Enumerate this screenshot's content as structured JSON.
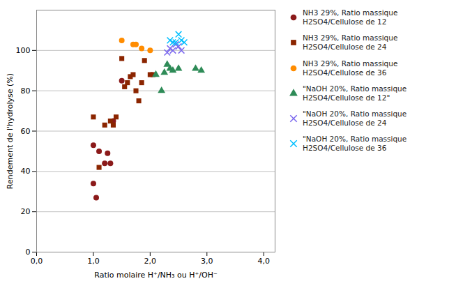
{
  "chart_data": {
    "type": "scatter",
    "xlabel": "Ratio molaire H⁺/NH₃ ou H⁺/OH⁻",
    "ylabel": "Rendement de l'hydrolyse (%)",
    "xlim": [
      0.0,
      4.2
    ],
    "ylim": [
      0,
      120
    ],
    "xticks": [
      {
        "value": 0.0,
        "label": "0,0"
      },
      {
        "value": 1.0,
        "label": "1,0"
      },
      {
        "value": 2.0,
        "label": "2,0"
      },
      {
        "value": 3.0,
        "label": "3,0"
      },
      {
        "value": 4.0,
        "label": "4,0"
      }
    ],
    "yticks": [
      0,
      20,
      40,
      60,
      80,
      100
    ],
    "grid": "y",
    "legend": "right",
    "series": [
      {
        "name": "NH3 29%, Ratio massique\nH2SO4/Cellulose de 12",
        "color": "#8B1A1A",
        "marker": "o",
        "x": [
          1.0,
          1.0,
          1.05,
          1.1,
          1.2,
          1.25,
          1.3,
          1.35,
          1.5
        ],
        "values": [
          53,
          34,
          27,
          50,
          44,
          49,
          44,
          65,
          85
        ]
      },
      {
        "name": "NH3 29%, Ratio massique\nH2SO4/Cellulose de 24",
        "color": "#8B2500",
        "marker": "s",
        "x": [
          1.0,
          1.1,
          1.2,
          1.3,
          1.35,
          1.4,
          1.5,
          1.55,
          1.6,
          1.65,
          1.7,
          1.75,
          1.8,
          1.85,
          1.9,
          2.0,
          2.05
        ],
        "values": [
          67,
          42,
          63,
          65,
          63,
          67,
          96,
          82,
          84,
          87,
          88,
          80,
          75,
          84,
          95,
          88,
          88
        ]
      },
      {
        "name": "NH3 29%, Ratio massique\nH2SO4/Cellulose de 36",
        "color": "#FF8C00",
        "marker": "o",
        "x": [
          1.5,
          1.7,
          1.75,
          1.85,
          2.0
        ],
        "values": [
          105,
          103,
          103,
          101,
          100
        ]
      },
      {
        "name": "\"NaOH 20%, Ratio massique\nH2SO4/Cellulose de 12\"",
        "color": "#2E8B57",
        "marker": "^",
        "x": [
          2.1,
          2.2,
          2.25,
          2.3,
          2.35,
          2.4,
          2.5,
          2.8,
          2.9
        ],
        "values": [
          88,
          80,
          89,
          93,
          91,
          90,
          91,
          91,
          90
        ]
      },
      {
        "name": "\"NaOH 20%, Ratio massique\nH2SO4/Cellulose de 24",
        "color": "#7B68EE",
        "marker": "x",
        "x": [
          2.3,
          2.35,
          2.4,
          2.45,
          2.5,
          2.55
        ],
        "values": [
          99,
          101,
          100,
          103,
          102,
          100
        ]
      },
      {
        "name": "\"NaOH 20%, Ratio massique\nH2SO4/Cellulose de 36",
        "color": "#00BFFF",
        "marker": "x",
        "x": [
          2.35,
          2.4,
          2.45,
          2.5,
          2.55,
          2.6
        ],
        "values": [
          105,
          104,
          104,
          108,
          105,
          104
        ]
      }
    ]
  }
}
